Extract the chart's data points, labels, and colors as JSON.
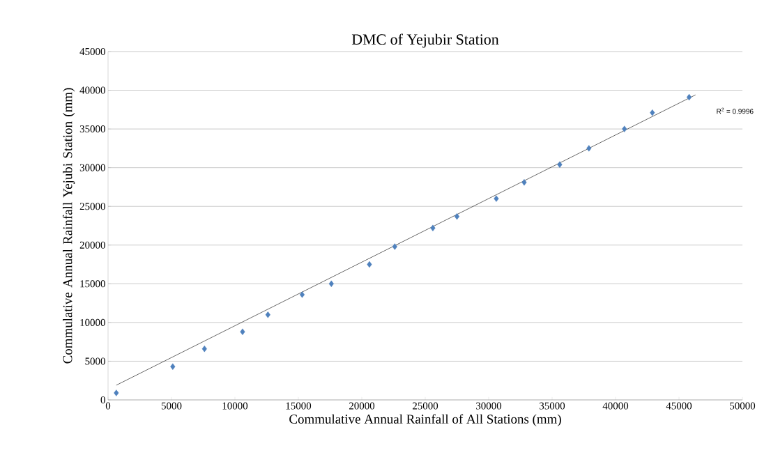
{
  "chart_data": {
    "type": "scatter",
    "title": "DMC of Yejubir Station",
    "xlabel": "Commulative Annual Rainfall of  All Stations (mm)",
    "ylabel": "Commulative Annual Rainfall Yejubi Station (mm)",
    "annotations": [
      "R$^{2}$ = 0.9996"
    ],
    "xlim": [
      0,
      50000
    ],
    "xticks": [
      0,
      5000,
      10000,
      15000,
      20000,
      25000,
      30000,
      35000,
      40000,
      45000,
      50000
    ],
    "ylim": [
      0,
      45000
    ],
    "yticks": [
      0,
      5000,
      10000,
      15000,
      20000,
      25000,
      30000,
      35000,
      40000,
      45000
    ],
    "grid": "y",
    "series": [
      {
        "color": "#4f81bd",
        "marker": "diamond",
        "x": [
          650,
          5100,
          7600,
          10600,
          12600,
          15300,
          17600,
          20600,
          22600,
          25600,
          27500,
          30600,
          32800,
          35600,
          37900,
          40700,
          42900,
          45800
        ],
        "values": [
          900,
          4300,
          6600,
          8800,
          11000,
          13600,
          15000,
          17500,
          19800,
          22200,
          23700,
          26000,
          28100,
          30400,
          32500,
          35000,
          37100,
          39100
        ]
      },
      {
        "type": "line",
        "color": "#000000",
        "marker": "none",
        "x": [
          650,
          46300
        ],
        "values": [
          1900,
          39400
        ]
      }
    ]
  }
}
